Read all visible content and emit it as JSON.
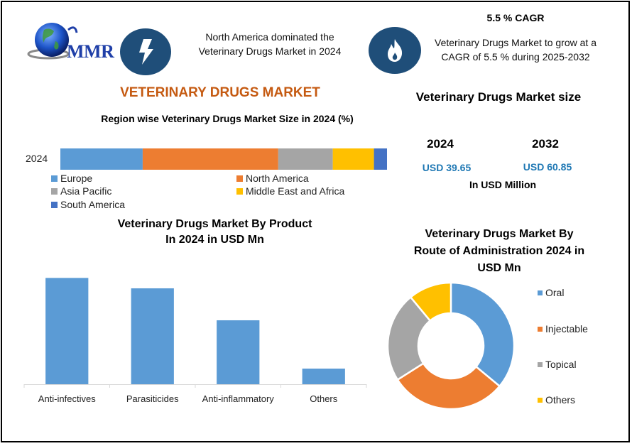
{
  "header": {
    "logo_text": "MMR",
    "highlight_left": "North America dominated the Veterinary Drugs Market in 2024",
    "cagr_title": "5.5 % CAGR",
    "cagr_text": "Veterinary Drugs Market to grow at a CAGR of 5.5 % during 2025-2032",
    "icons": [
      "lightning-icon",
      "flame-icon"
    ],
    "icon_bg_color": "#1f4e79"
  },
  "main_title": "VETERINARY DRUGS MARKET",
  "market_size": {
    "title": "Veterinary Drugs Market size",
    "years": [
      {
        "year": "2024",
        "value": "USD 39.65"
      },
      {
        "year": "2032",
        "value": "USD 60.85"
      }
    ],
    "unit": "In USD Million"
  },
  "chart_data": [
    {
      "type": "bar",
      "orientation": "horizontal-stacked-100",
      "title": "Region wise Veterinary Drugs Market Size in 2024 (%)",
      "categories": [
        "2024"
      ],
      "series": [
        {
          "name": "Europe",
          "values": [
            25.2
          ],
          "color": "#5b9bd5"
        },
        {
          "name": "North America",
          "values": [
            41.5
          ],
          "color": "#ed7d31"
        },
        {
          "name": "Asia Pacific",
          "values": [
            16.7
          ],
          "color": "#a5a5a5"
        },
        {
          "name": "Middle East and Africa",
          "values": [
            12.6
          ],
          "color": "#ffc000"
        },
        {
          "name": "South America",
          "values": [
            4.0
          ],
          "color": "#4472c4"
        }
      ],
      "xlim": [
        0,
        100
      ],
      "legend": "bottom"
    },
    {
      "type": "bar",
      "title": "Veterinary Drugs Market By Product In 2024 in USD Mn",
      "title_lines": [
        "Veterinary Drugs Market By Product",
        "In 2024 in USD Mn"
      ],
      "categories": [
        "Anti-infectives",
        "Parasiticides",
        "Anti-inflammatory",
        "Others"
      ],
      "values": [
        14.3,
        12.9,
        8.6,
        2.1
      ],
      "color": "#5b9bd5",
      "ylim": [
        0,
        15
      ],
      "xlabel": "",
      "ylabel": "",
      "grid": false
    },
    {
      "type": "pie",
      "variant": "donut",
      "title": "Veterinary Drugs Market By Route of Administration 2024 in USD Mn",
      "title_lines": [
        "Veterinary Drugs Market By",
        "Route of Administration 2024 in",
        "USD Mn"
      ],
      "labels": [
        "Oral",
        "Injectable",
        "Topical",
        "Others"
      ],
      "values": [
        36,
        30,
        23,
        11
      ],
      "colors": [
        "#5b9bd5",
        "#ed7d31",
        "#a5a5a5",
        "#ffc000"
      ],
      "legend": "right"
    }
  ]
}
